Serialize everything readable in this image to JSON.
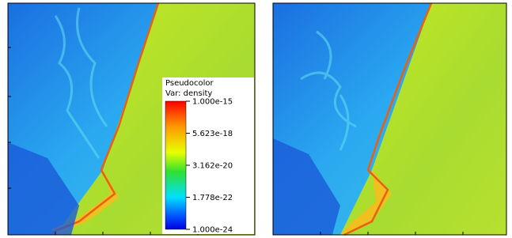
{
  "legend": {
    "title": "Pseudocolor",
    "variable": "Var: density",
    "scale": "log",
    "lim": [
      1e-24,
      1e-15
    ],
    "ticks": [
      {
        "value": 1e-15,
        "label": "1.000e-15"
      },
      {
        "value": 5.623e-18,
        "label": "5.623e-18"
      },
      {
        "value": 3.162e-20,
        "label": "3.162e-20"
      },
      {
        "value": 1.778e-22,
        "label": "1.778e-22"
      },
      {
        "value": 1e-24,
        "label": "1.000e-24"
      }
    ]
  }
}
